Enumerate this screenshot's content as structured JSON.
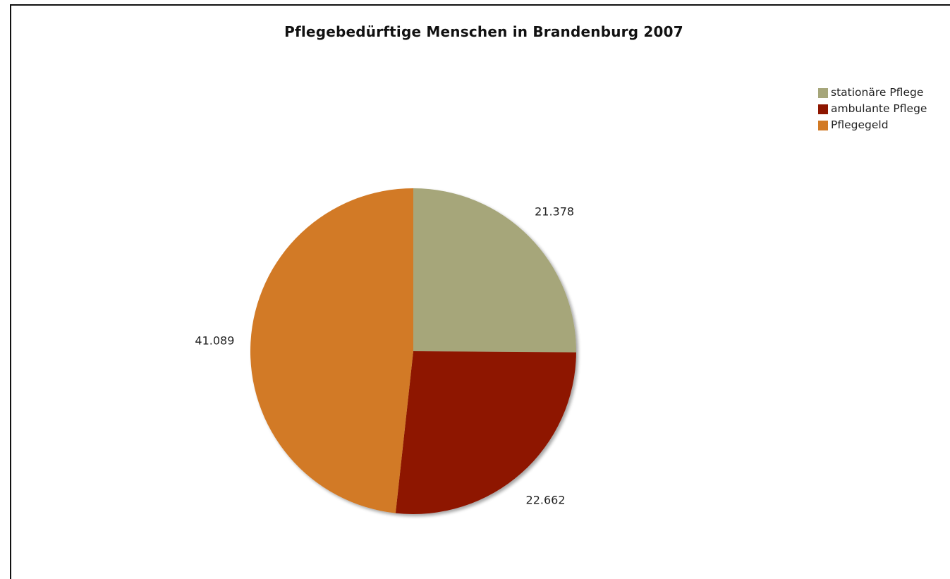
{
  "chart_data": {
    "type": "pie",
    "title": "Pflegebedürftige Menschen in Brandenburg 2007",
    "slices": [
      {
        "label": "stationäre Pflege",
        "value": 21378,
        "display": "21.378",
        "color": "#a6a67a"
      },
      {
        "label": "ambulante Pflege",
        "value": 22662,
        "display": "22.662",
        "color": "#8e1600"
      },
      {
        "label": "Pflegegeld",
        "value": 41089,
        "display": "41.089",
        "color": "#d27a25"
      }
    ],
    "start": "12 o'clock",
    "direction": "clockwise",
    "legend_placement": "top-right"
  }
}
